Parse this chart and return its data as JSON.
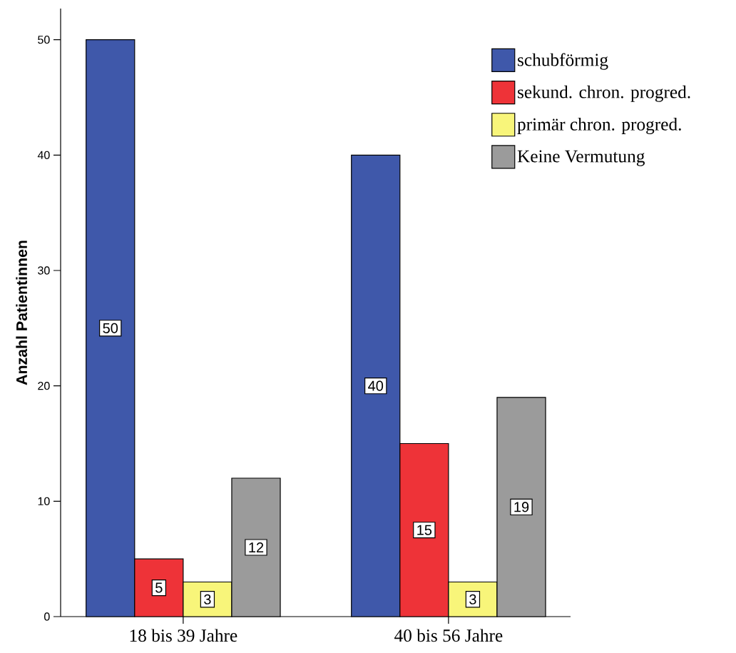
{
  "chart_data": {
    "type": "bar",
    "ylabel": "Anzahl Patientinnen",
    "categories": [
      "18 bis 39 Jahre",
      "40 bis 56 Jahre"
    ],
    "series": [
      {
        "name": "schubförmig",
        "color": "#3f58aa",
        "values": [
          50,
          40
        ]
      },
      {
        "name": "sekund. chron. progred.",
        "color": "#ee3338",
        "values": [
          5,
          15
        ]
      },
      {
        "name": "primär chron. progred.",
        "color": "#f8f57a",
        "values": [
          3,
          3
        ]
      },
      {
        "name": "Keine Vermutung",
        "color": "#9b9b9b",
        "values": [
          12,
          19
        ]
      }
    ],
    "ylim": [
      0,
      52.7
    ],
    "yticks": [
      0,
      10,
      20,
      30,
      40,
      50
    ],
    "data_labels": true,
    "legend": "top right",
    "grid": false
  }
}
